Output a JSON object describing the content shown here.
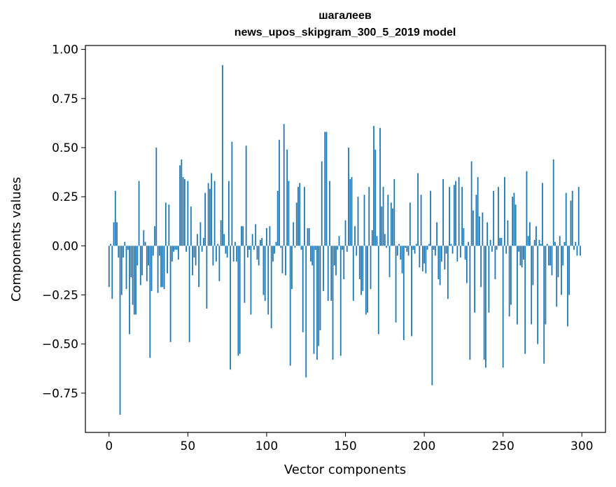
{
  "chart_data": {
    "type": "bar",
    "title_line1": "шагалеев",
    "title_line2": "news_upos_skipgram_300_5_2019 model",
    "xlabel": "Vector components",
    "ylabel": "Components values",
    "xlim": [
      -15,
      315
    ],
    "ylim": [
      -0.95,
      1.02
    ],
    "xticks": [
      0,
      50,
      100,
      150,
      200,
      250,
      300
    ],
    "xtick_labels": [
      "0",
      "50",
      "100",
      "150",
      "200",
      "250",
      "300"
    ],
    "yticks": [
      1.0,
      0.75,
      0.5,
      0.25,
      0.0,
      -0.25,
      -0.5,
      -0.75
    ],
    "ytick_labels": [
      "1.00",
      "0.75",
      "0.50",
      "0.25",
      "0.00",
      "−0.25",
      "−0.50",
      "−0.75"
    ],
    "bar_color": "#1f77b4",
    "values": [
      -0.21,
      0.01,
      -0.27,
      0.12,
      0.28,
      0.12,
      -0.06,
      -0.86,
      -0.25,
      -0.06,
      0.02,
      -0.22,
      -0.02,
      -0.45,
      -0.16,
      -0.3,
      -0.35,
      -0.35,
      -0.1,
      0.33,
      -0.2,
      -0.15,
      0.08,
      0.02,
      -0.18,
      -0.1,
      -0.57,
      -0.23,
      -0.05,
      0.1,
      0.5,
      -0.24,
      -0.05,
      -0.21,
      -0.21,
      -0.22,
      0.22,
      -0.14,
      0.21,
      -0.49,
      -0.08,
      -0.03,
      -0.02,
      -0.02,
      -0.07,
      0.41,
      0.44,
      0.35,
      0.34,
      -0.03,
      0.33,
      -0.49,
      0.2,
      -0.15,
      -0.06,
      -0.1,
      0.06,
      -0.21,
      0.12,
      -0.03,
      0.04,
      0.27,
      -0.32,
      0.32,
      0.29,
      0.37,
      -0.1,
      0.33,
      -0.08,
      0.01,
      -0.18,
      0.13,
      0.92,
      0.06,
      -0.04,
      -0.06,
      0.33,
      -0.63,
      0.53,
      -0.08,
      0.02,
      -0.08,
      -0.56,
      -0.55,
      0.1,
      0.1,
      -0.29,
      0.51,
      -0.06,
      -0.02,
      -0.35,
      0.06,
      -0.02,
      0.11,
      -0.07,
      -0.1,
      0.03,
      0.04,
      -0.25,
      -0.28,
      0.09,
      -0.35,
      0.1,
      -0.42,
      -0.08,
      -0.04,
      0.02,
      0.28,
      0.54,
      -0.01,
      -0.14,
      0.62,
      -0.15,
      0.49,
      0.33,
      -0.61,
      -0.22,
      0.12,
      -0.01,
      0.22,
      0.3,
      0.32,
      -0.02,
      -0.44,
      0.3,
      -0.67,
      0.09,
      0.09,
      -0.08,
      -0.1,
      -0.55,
      -0.02,
      -0.58,
      -0.51,
      -0.43,
      0.43,
      -0.23,
      0.58,
      0.58,
      -0.28,
      0.33,
      -0.28,
      -0.58,
      -0.1,
      -0.15,
      -0.02,
      0.05,
      -0.56,
      -0.02,
      -0.17,
      0.13,
      -0.03,
      0.5,
      0.34,
      0.35,
      -0.28,
      0.1,
      -0.05,
      0.25,
      -0.17,
      -0.25,
      -0.23,
      0.26,
      -0.35,
      -0.34,
      0.3,
      -0.22,
      0.08,
      0.61,
      0.49,
      0.05,
      -0.45,
      0.6,
      0.2,
      0.3,
      0.06,
      -0.01,
      0.26,
      -0.16,
      0.22,
      0.19,
      0.34,
      -0.39,
      -0.05,
      0.01,
      -0.07,
      -0.14,
      -0.48,
      -0.01,
      -0.03,
      -0.05,
      0.22,
      -0.46,
      -0.02,
      -0.04,
      0.01,
      0.37,
      -0.11,
      0.26,
      -0.13,
      -0.09,
      -0.14,
      -0.02,
      0.01,
      0.28,
      -0.71,
      -0.02,
      -0.05,
      0.12,
      -0.17,
      -0.2,
      -0.08,
      0.34,
      -0.12,
      -0.04,
      -0.27,
      0.3,
      0.01,
      -0.04,
      0.31,
      0.33,
      -0.08,
      0.35,
      -0.06,
      0.3,
      0.09,
      -0.07,
      -0.19,
      0.02,
      -0.58,
      0.43,
      0.18,
      -0.34,
      0.26,
      0.35,
      0.15,
      -0.21,
      0.17,
      -0.58,
      -0.62,
      0.12,
      -0.34,
      0.03,
      -0.03,
      0.28,
      -0.17,
      -0.02,
      0.3,
      0.04,
      0.04,
      -0.62,
      0.35,
      -0.04,
      0.13,
      -0.36,
      -0.3,
      0.25,
      0.27,
      0.21,
      -0.4,
      -0.03,
      -0.1,
      -0.11,
      -0.07,
      -0.55,
      0.38,
      0.05,
      0.12,
      -0.4,
      -0.2,
      0.03,
      0.1,
      -0.5,
      0.03,
      0.01,
      0.32,
      -0.6,
      -0.4,
      0.01,
      -0.1,
      -0.1,
      -0.15,
      0.44,
      0.02,
      -0.31,
      -0.16,
      0.05,
      -0.25,
      -0.1,
      0.02,
      0.27,
      -0.41,
      -0.25,
      0.23,
      0.28,
      -0.02,
      0.02,
      -0.05,
      0.3,
      -0.05
    ]
  }
}
